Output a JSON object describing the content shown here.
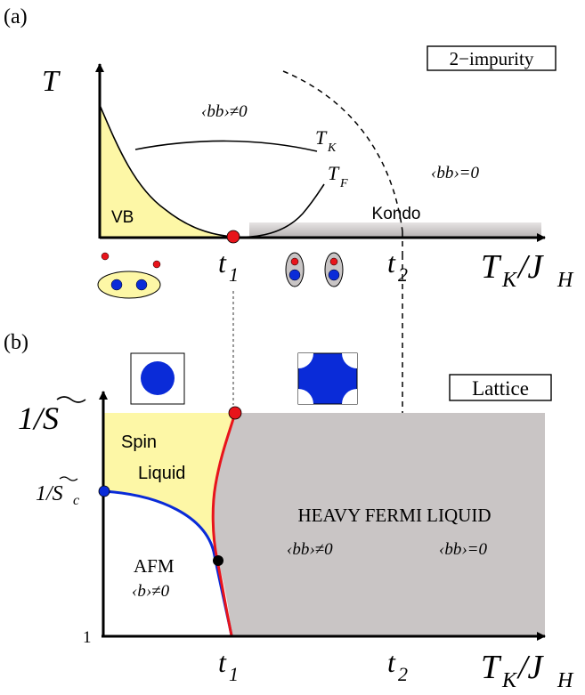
{
  "panel_a": {
    "label": "(a)",
    "box_label": "2−impurity",
    "y_axis": "T",
    "x_axis_main": "T",
    "x_axis_sub": "K",
    "x_axis_sep": "/J",
    "x_axis_sub2": "H",
    "region_vb": "VB",
    "region_kondo": "Kondo",
    "bb_nonzero": "‹bb›≠0",
    "bb_zero": "‹bb›=0",
    "tk_main": "T",
    "tk_sub": "K",
    "tf_main": "T",
    "tf_sub": "F",
    "t1_main": "t",
    "t1_sub": "1",
    "t2_main": "t",
    "t2_sub": "2"
  },
  "panel_b": {
    "label": "(b)",
    "box_label": "Lattice",
    "y_top_label": "1/S",
    "y_mid_label": "1/S",
    "y_mid_sub": "c",
    "y_bottom_tick": "1",
    "region_spin_1": "Spin",
    "region_spin_2": "Liquid",
    "region_hfl": "HEAVY FERMI LIQUID",
    "bb_nonzero": "‹bb›≠0",
    "bb_zero": "‹bb›=0",
    "afm": "AFM",
    "b_nonzero": "‹b›≠0",
    "x_axis_main": "T",
    "x_axis_sub": "K",
    "x_axis_sep": "/J",
    "x_axis_sub2": "H",
    "t1_main": "t",
    "t1_sub": "1",
    "t2_main": "t",
    "t2_sub": "2"
  },
  "colors": {
    "yellow": "#fdf7a6",
    "gray": "#c9c5c5",
    "red": "#e8141b",
    "blue": "#0a2bd8",
    "black": "#000000"
  }
}
